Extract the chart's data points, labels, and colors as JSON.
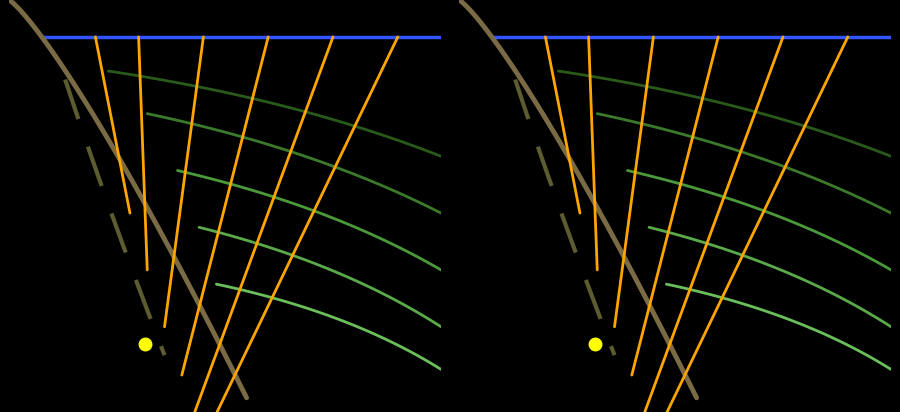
{
  "bg_color": "#000000",
  "blue_color": "#3355FF",
  "blue_linewidth": 2.5,
  "shore_color": "#7A6B45",
  "shore_linewidth": 3.5,
  "dashed_color": "#5C5C30",
  "dashed_linewidth": 3.0,
  "orange_color": "#FFA500",
  "orange_linewidth": 2.0,
  "green_linewidth": 2.0,
  "dot_color": "#FFFF00",
  "dot_size": 9,
  "blue_y": 8.7,
  "xlim": [
    0,
    10
  ],
  "ylim": [
    -4.5,
    10
  ],
  "green_shades": [
    "#2a5a1a",
    "#3a7a2a",
    "#4a9a3a",
    "#5aaa4a",
    "#6abf5a"
  ],
  "orange_lines": [
    [
      2.0,
      2.8,
      2.5
    ],
    [
      3.0,
      3.2,
      0.5
    ],
    [
      4.5,
      3.6,
      -1.5
    ],
    [
      6.0,
      4.0,
      -3.2
    ],
    [
      7.5,
      4.3,
      -4.5
    ],
    [
      9.0,
      4.5,
      -5.5
    ]
  ],
  "green_curves": [
    [
      2.3,
      7.5,
      10.0,
      4.5
    ],
    [
      3.2,
      6.0,
      10.0,
      2.5
    ],
    [
      3.9,
      4.0,
      10.0,
      0.5
    ],
    [
      4.4,
      2.0,
      10.0,
      -1.5
    ],
    [
      4.8,
      0.0,
      10.0,
      -3.0
    ]
  ]
}
